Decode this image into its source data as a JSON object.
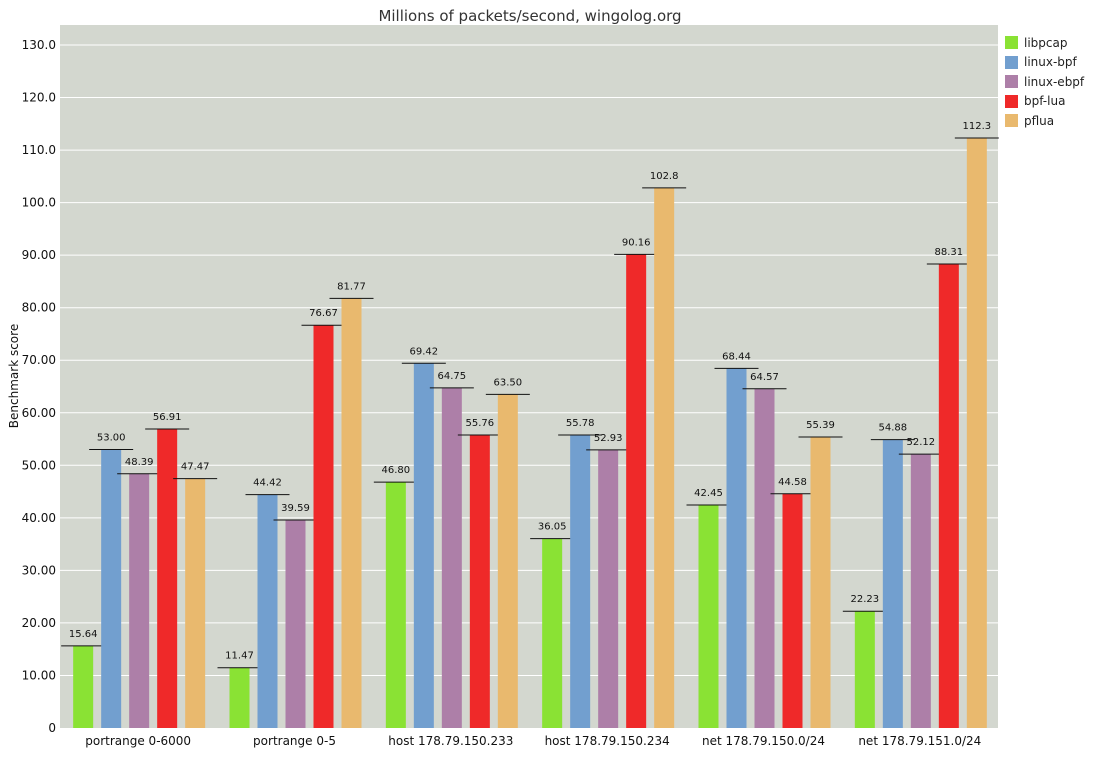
{
  "chart_data": {
    "type": "bar",
    "title": "Millions of packets/second, wingolog.org",
    "xlabel": "",
    "ylabel": "Benchmark score",
    "ylim": [
      0,
      130
    ],
    "yticks": [
      "0",
      "10.00",
      "20.00",
      "30.00",
      "40.00",
      "50.00",
      "60.00",
      "70.00",
      "80.00",
      "90.00",
      "100.0",
      "110.0",
      "120.0",
      "130.0"
    ],
    "grid": true,
    "legend_position": "top-right",
    "categories": [
      "portrange 0-6000",
      "portrange 0-5",
      "host 178.79.150.233",
      "host 178.79.150.234",
      "net 178.79.150.0/24",
      "net 178.79.151.0/24"
    ],
    "series": [
      {
        "name": "libpcap",
        "color": "#8ae234",
        "values": [
          15.64,
          11.47,
          46.8,
          36.05,
          42.45,
          22.23
        ],
        "labels": [
          "15.64",
          "11.47",
          "46.80",
          "36.05",
          "42.45",
          "22.23"
        ]
      },
      {
        "name": "linux-bpf",
        "color": "#729fcf",
        "values": [
          53.0,
          44.42,
          69.42,
          55.78,
          68.44,
          54.88
        ],
        "labels": [
          "53.00",
          "44.42",
          "69.42",
          "55.78",
          "68.44",
          "54.88"
        ]
      },
      {
        "name": "linux-ebpf",
        "color": "#ad7fa8",
        "values": [
          48.39,
          39.59,
          64.75,
          52.93,
          64.57,
          52.12
        ],
        "labels": [
          "48.39",
          "39.59",
          "64.75",
          "52.93",
          "64.57",
          "52.12"
        ]
      },
      {
        "name": "bpf-lua",
        "color": "#ef2929",
        "values": [
          56.91,
          76.67,
          55.76,
          90.16,
          44.58,
          88.31
        ],
        "labels": [
          "56.91",
          "76.67",
          "55.76",
          "90.16",
          "44.58",
          "88.31"
        ]
      },
      {
        "name": "pflua",
        "color": "#e9b96e",
        "values": [
          47.47,
          81.77,
          63.5,
          102.8,
          55.39,
          112.3
        ],
        "labels": [
          "47.47",
          "81.77",
          "63.50",
          "102.8",
          "55.39",
          "112.3"
        ]
      }
    ]
  }
}
